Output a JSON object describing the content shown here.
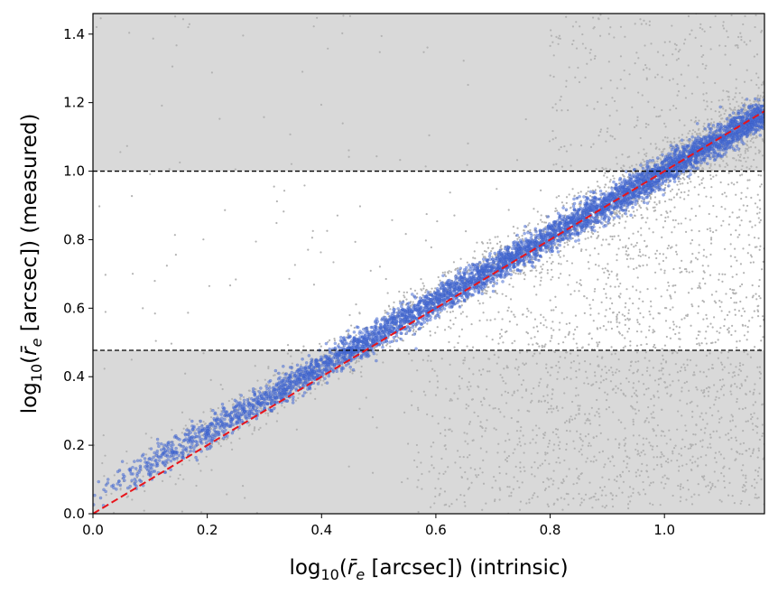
{
  "chart_data": {
    "type": "scatter",
    "title": "",
    "xlabel_parts": {
      "pre": "log",
      "sub": "10",
      "open": "(",
      "var": "r̄",
      "varsub": "e",
      "post": " [arcsec]) (intrinsic)"
    },
    "ylabel_parts": {
      "pre": "log",
      "sub": "10",
      "open": "(",
      "var": "r̄",
      "varsub": "e",
      "post": " [arcsec]) (measured)"
    },
    "xlim": [
      0.0,
      1.175
    ],
    "ylim": [
      0.0,
      1.46
    ],
    "x_ticks": [
      0.0,
      0.2,
      0.4,
      0.6,
      0.8,
      1.0
    ],
    "x_tick_labels": [
      "0.0",
      "0.2",
      "0.4",
      "0.6",
      "0.8",
      "1.0"
    ],
    "y_ticks": [
      0.0,
      0.2,
      0.4,
      0.6,
      0.8,
      1.0,
      1.2,
      1.4
    ],
    "y_tick_labels": [
      "0.0",
      "0.2",
      "0.4",
      "0.6",
      "0.8",
      "1.0",
      "1.2",
      "1.4"
    ],
    "grid": false,
    "shaded_regions": [
      {
        "y_from": 0.0,
        "y_to": 0.477,
        "color": "#d9d9d9"
      },
      {
        "y_from": 1.0,
        "y_to": 1.46,
        "color": "#d9d9d9"
      }
    ],
    "hlines": [
      {
        "y": 0.477,
        "style": "dashed",
        "color": "#000000"
      },
      {
        "y": 1.0,
        "style": "dashed",
        "color": "#000000"
      }
    ],
    "reference_line": {
      "x": [
        0.0,
        1.175
      ],
      "y": [
        0.0,
        1.175
      ],
      "style": "dashed",
      "color": "#e8141a"
    },
    "series": [
      {
        "color": "#b3b3b3",
        "marker_size": "small",
        "description_points": [
          [
            0.05,
            0.08
          ],
          [
            0.12,
            0.18
          ],
          [
            0.18,
            0.24
          ],
          [
            0.25,
            0.28
          ],
          [
            0.33,
            0.35
          ],
          [
            0.42,
            0.44
          ],
          [
            0.5,
            0.52
          ],
          [
            0.58,
            0.58
          ],
          [
            0.65,
            0.62
          ],
          [
            0.72,
            0.68
          ],
          [
            0.8,
            0.74
          ],
          [
            0.88,
            0.82
          ],
          [
            0.95,
            0.88
          ],
          [
            1.02,
            0.92
          ],
          [
            1.1,
            0.95
          ],
          [
            0.9,
            0.55
          ],
          [
            1.05,
            0.4
          ],
          [
            1.12,
            0.2
          ],
          [
            0.85,
            0.3
          ],
          [
            0.95,
            0.15
          ],
          [
            0.3,
            0.93
          ],
          [
            0.2,
            0.81
          ],
          [
            0.75,
            1.25
          ],
          [
            0.95,
            1.35
          ],
          [
            1.15,
            1.42
          ]
        ],
        "envelope": {
          "tight_band": {
            "x_range": [
              0.0,
              1.175
            ],
            "scatter": 0.05
          },
          "low_tail": {
            "x_range": [
              0.55,
              1.175
            ],
            "y_range_fraction": [
              0.0,
              1.0
            ]
          }
        }
      },
      {
        "color": "#4a6fd6",
        "marker_size": "small",
        "description_points": [
          [
            0.02,
            0.07
          ],
          [
            0.05,
            0.11
          ],
          [
            0.1,
            0.15
          ],
          [
            0.15,
            0.19
          ],
          [
            0.2,
            0.22
          ],
          [
            0.25,
            0.27
          ],
          [
            0.3,
            0.31
          ],
          [
            0.35,
            0.37
          ],
          [
            0.4,
            0.42
          ],
          [
            0.45,
            0.47
          ],
          [
            0.5,
            0.52
          ],
          [
            0.55,
            0.57
          ],
          [
            0.6,
            0.61
          ],
          [
            0.65,
            0.66
          ],
          [
            0.7,
            0.71
          ],
          [
            0.75,
            0.76
          ],
          [
            0.8,
            0.8
          ],
          [
            0.85,
            0.85
          ],
          [
            0.9,
            0.9
          ],
          [
            0.95,
            0.95
          ],
          [
            1.0,
            1.0
          ],
          [
            1.05,
            1.05
          ],
          [
            1.1,
            1.09
          ],
          [
            1.15,
            1.14
          ],
          [
            1.17,
            1.16
          ]
        ],
        "envelope": {
          "x_range": [
            0.0,
            1.175
          ],
          "offset": "+0.05 at low x, 0 at high x",
          "scatter": 0.025
        }
      }
    ]
  }
}
